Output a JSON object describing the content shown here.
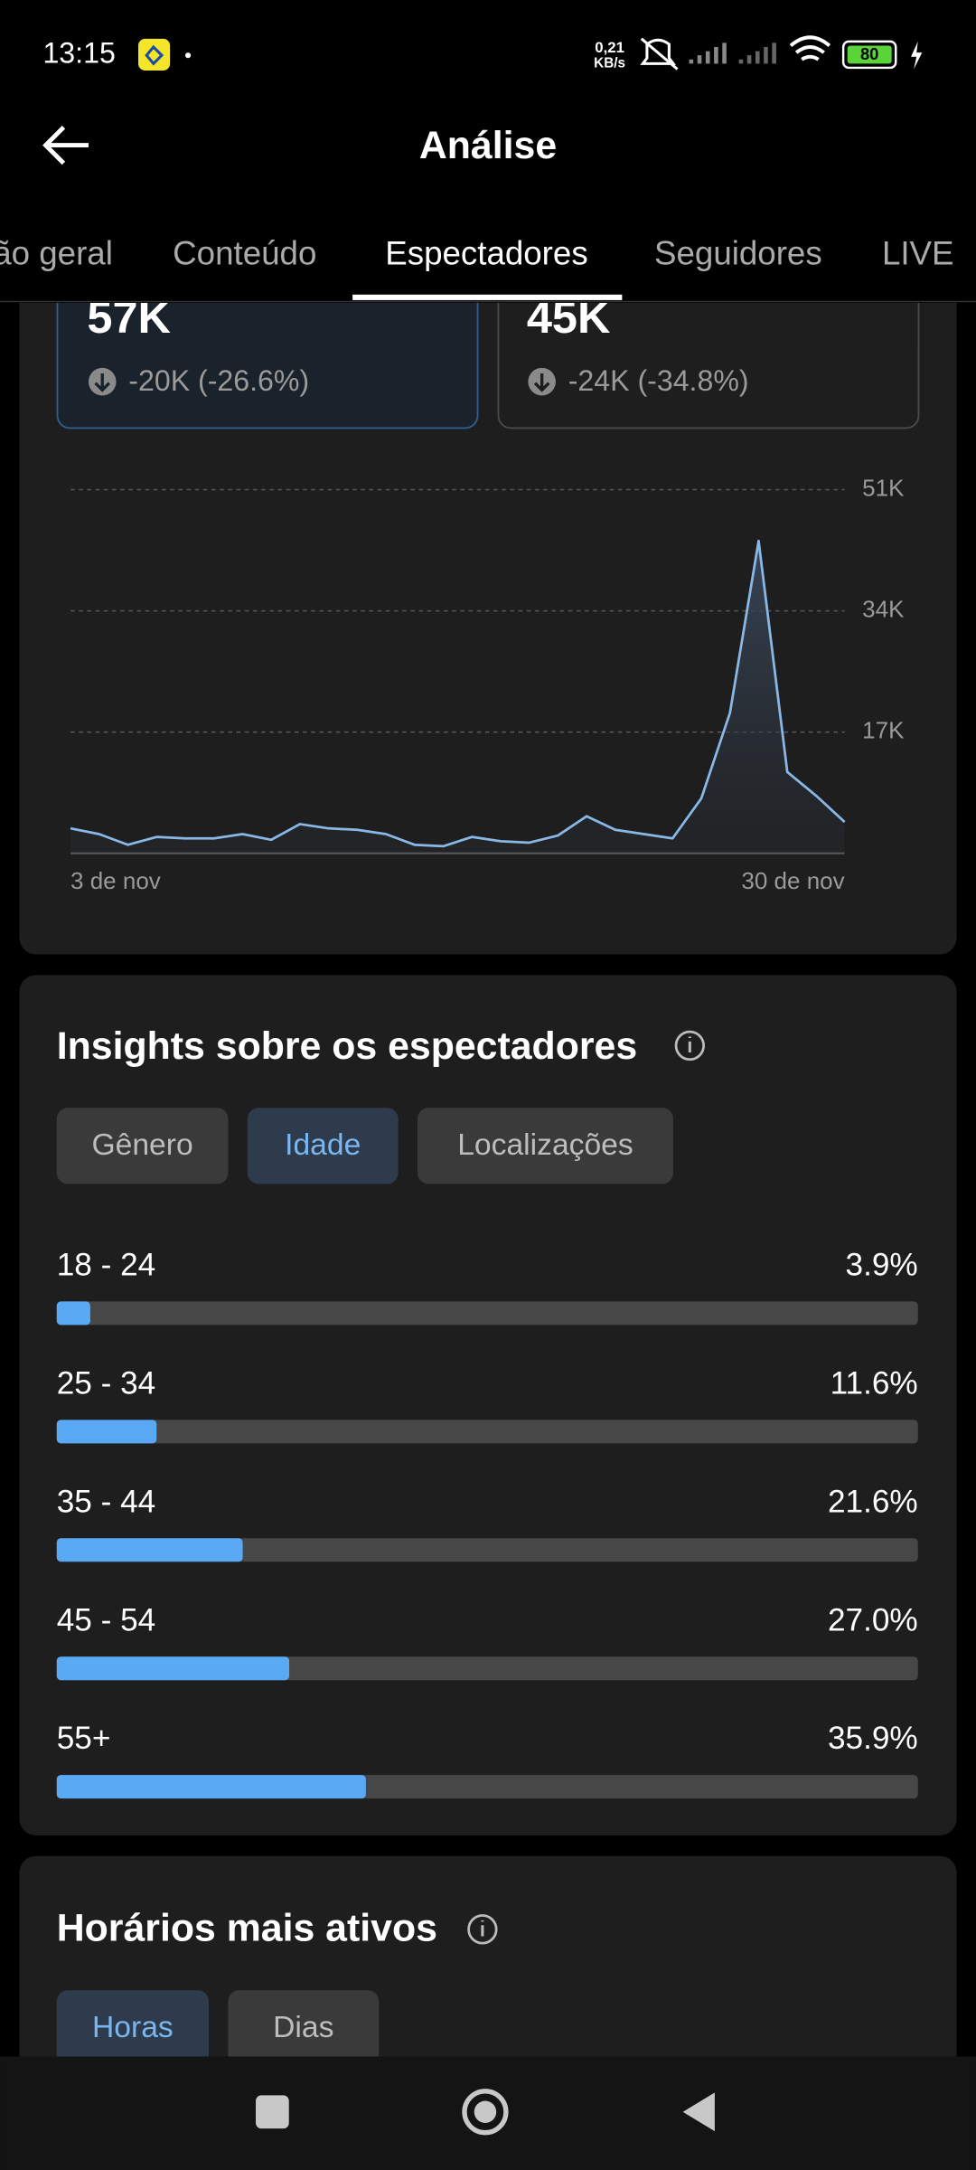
{
  "status_bar": {
    "time": "13:15",
    "net_speed": "0,21",
    "net_unit": "KB/s",
    "battery": "80"
  },
  "header": {
    "title": "Análise"
  },
  "tabs": [
    "Visão geral",
    "Conteúdo",
    "Espectadores",
    "Seguidores",
    "LIVE"
  ],
  "metrics": [
    {
      "value": "57K",
      "change": "-20K (-26.6%)"
    },
    {
      "value": "45K",
      "change": "-24K (-34.8%)"
    }
  ],
  "chart_data": [
    {
      "type": "line",
      "categories": [
        "3 de nov",
        null,
        null,
        null,
        null,
        null,
        null,
        null,
        null,
        null,
        null,
        null,
        null,
        null,
        null,
        null,
        null,
        null,
        null,
        null,
        null,
        null,
        null,
        null,
        null,
        null,
        null,
        "30 de nov"
      ],
      "values": [
        3500,
        2700,
        1200,
        2300,
        2100,
        2100,
        2700,
        1900,
        4100,
        3500,
        3300,
        2700,
        1200,
        1000,
        2300,
        1700,
        1500,
        2500,
        5200,
        3300,
        2700,
        2100,
        7700,
        19700,
        43800,
        11400,
        8100,
        4400
      ],
      "color": "#8ab8e6",
      "ylim": [
        0,
        51000
      ],
      "yticks": [
        {
          "value": 17000,
          "label": "17K"
        },
        {
          "value": 34000,
          "label": "34K"
        },
        {
          "value": 51000,
          "label": "51K"
        }
      ],
      "grid": true
    },
    {
      "type": "hbar",
      "title": "Insights sobre os espectadores",
      "categories": [
        "18 - 24",
        "25 - 34",
        "35 - 44",
        "45 - 54",
        "55+"
      ],
      "values": [
        3.9,
        11.6,
        21.6,
        27.0,
        35.9
      ],
      "value_labels": [
        "3.9%",
        "11.6%",
        "21.6%",
        "27.0%",
        "35.9%"
      ],
      "xlim": [
        0,
        100
      ],
      "color": "#5aa9f5"
    }
  ],
  "insights_filters": [
    "Gênero",
    "Idade",
    "Localizações"
  ],
  "active_hours": {
    "title": "Horários mais ativos",
    "filters": [
      "Horas",
      "Dias"
    ]
  }
}
